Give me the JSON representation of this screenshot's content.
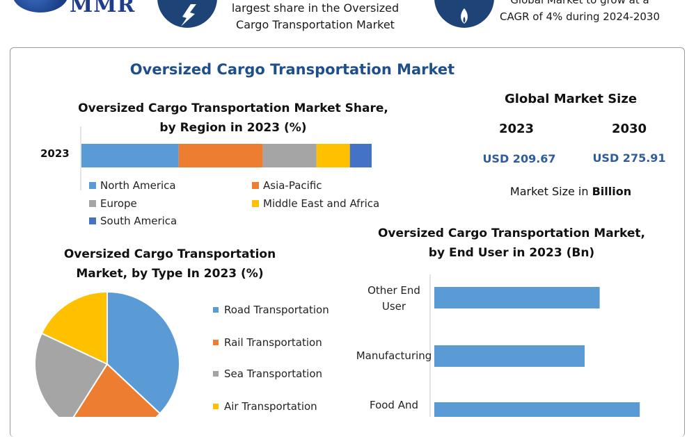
{
  "header": {
    "logo_text": "MMR",
    "share_text_lines": [
      "largest share in the Oversized",
      "Cargo Transportation Market"
    ],
    "cagr_text_lines": [
      "Global Market to grow at a",
      "CAGR of 4% during 2024-2030"
    ]
  },
  "main_title": "Oversized Cargo Transportation Market",
  "market_size": {
    "title": "Global Market Size",
    "year_2023": "2023",
    "year_2030": "2030",
    "value_2023": "USD 209.67",
    "value_2030": "USD 275.91",
    "note_prefix": "Market Size in ",
    "note_bold": "Billion"
  },
  "colors": {
    "blue": "#5b9bd5",
    "orange": "#ed7d31",
    "gray": "#a5a5a5",
    "yellow": "#ffc000",
    "dark_blue": "#4472c4",
    "title_blue": "#1f4f8a",
    "icon_navy": "#1e4377"
  },
  "icons": [
    "mmr-globe-logo",
    "lightning-icon",
    "flame-icon"
  ],
  "chart_data": [
    {
      "type": "bar",
      "orientation": "horizontal-stacked",
      "title": "Oversized Cargo Transportation Market Share, by Region in 2023 (%)",
      "categories": [
        "2023"
      ],
      "series": [
        {
          "name": "North America",
          "values": [
            33.5
          ]
        },
        {
          "name": "Asia-Pacific",
          "values": [
            29
          ]
        },
        {
          "name": "Europe",
          "values": [
            18.5
          ]
        },
        {
          "name": "Middle East and Africa",
          "values": [
            11.5
          ]
        },
        {
          "name": "South America",
          "values": [
            7.5
          ]
        }
      ],
      "xlim": [
        0,
        100
      ],
      "legend": "bottom"
    },
    {
      "type": "pie",
      "title": "Oversized Cargo Transportation Market, by Type In 2023 (%)",
      "labels": [
        "Road Transportation",
        "Rail Transportation",
        "Sea Transportation",
        "Air Transportation"
      ],
      "values": [
        37,
        22,
        23,
        18
      ],
      "legend": "right"
    },
    {
      "type": "bar",
      "orientation": "horizontal",
      "title": "Oversized Cargo Transportation Market, by End User in 2023 (Bn)",
      "categories": [
        "Other End User",
        "Manufacturing",
        "Food And"
      ],
      "category_label_lines": [
        [
          "Other End",
          "User"
        ],
        [
          "Manufacturing"
        ],
        [
          "Food And"
        ]
      ],
      "values": [
        66,
        60,
        82
      ],
      "xlim": [
        0,
        100
      ]
    }
  ]
}
